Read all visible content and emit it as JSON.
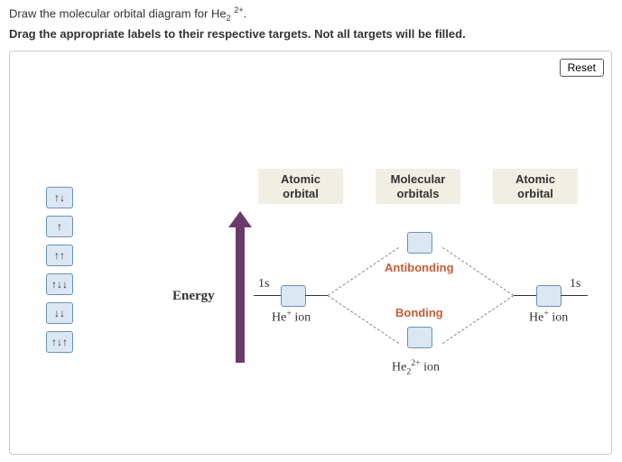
{
  "question": {
    "prompt_html": "Draw the molecular orbital diagram for He<sub>2</sub> <sup>2+</sup>.",
    "instruction": "Drag the appropriate labels to their respective targets. Not all targets will be filled."
  },
  "controls": {
    "reset_label": "Reset"
  },
  "palette": {
    "chips": [
      "↑↓",
      "↑",
      "↑↑",
      "↑↓↓",
      "↓↓",
      "↑↓↑"
    ]
  },
  "diagram": {
    "headers": {
      "left_atomic": "Atomic orbital",
      "molecular": "Molecular orbitals",
      "right_atomic": "Atomic orbital"
    },
    "energy_label": "Energy",
    "left_atom": {
      "orbital_label": "1s",
      "ion_label_html": "He<sup>+</sup> ion"
    },
    "right_atom": {
      "orbital_label": "1s",
      "ion_label_html": "He<sup>+</sup> ion"
    },
    "molecular": {
      "antibonding_label": "Antibonding",
      "bonding_label": "Bonding",
      "ion_label_html": "He<sub>2</sub><sup>2+</sup> ion",
      "antibonding_color": "#c85c35",
      "bonding_color": "#c85c35"
    },
    "arrow_color": "#6b3a6b",
    "chip_bg": "#dbe7f2",
    "chip_border": "#6b90b9",
    "header_bg": "#f1efe3"
  }
}
